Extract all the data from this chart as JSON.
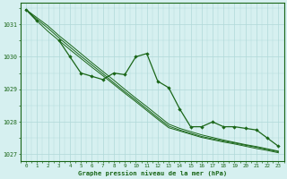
{
  "bg_color": "#d6f0f0",
  "grid_color": "#b0d8d8",
  "line_color": "#1a6618",
  "title": "Graphe pression niveau de la mer (hPa)",
  "hours": [
    0,
    1,
    2,
    3,
    4,
    5,
    6,
    7,
    8,
    9,
    10,
    11,
    12,
    13,
    14,
    15,
    16,
    17,
    18,
    19,
    20,
    21,
    22,
    23
  ],
  "ylim": [
    1026.8,
    1031.65
  ],
  "yticks": [
    1027,
    1028,
    1029,
    1030,
    1031
  ],
  "series_main": [
    1031.45,
    1031.1,
    null,
    1030.5,
    1030.0,
    1029.5,
    1029.4,
    1029.3,
    1029.5,
    1029.45,
    1030.0,
    1030.1,
    1029.25,
    1029.05,
    1028.4,
    1027.85,
    1027.85,
    1028.0,
    1027.85,
    1027.85,
    1027.8,
    1027.75,
    1027.5,
    1027.25
  ],
  "trend1": [
    1031.45,
    1031.1,
    1030.78,
    1030.5,
    1030.22,
    1029.95,
    1029.68,
    1029.42,
    1029.15,
    1028.88,
    1028.62,
    1028.35,
    1028.08,
    1027.82,
    1027.72,
    1027.62,
    1027.52,
    1027.45,
    1027.38,
    1027.32,
    1027.25,
    1027.18,
    1027.12,
    1027.05
  ],
  "trend2": [
    1031.45,
    1031.15,
    1030.88,
    1030.58,
    1030.3,
    1030.02,
    1029.75,
    1029.48,
    1029.2,
    1028.93,
    1028.67,
    1028.4,
    1028.13,
    1027.87,
    1027.75,
    1027.65,
    1027.55,
    1027.48,
    1027.41,
    1027.35,
    1027.28,
    1027.22,
    1027.15,
    1027.08
  ],
  "trend3": [
    1031.45,
    1031.2,
    1030.95,
    1030.65,
    1030.38,
    1030.1,
    1029.82,
    1029.55,
    1029.28,
    1029.0,
    1028.73,
    1028.47,
    1028.2,
    1027.93,
    1027.8,
    1027.7,
    1027.6,
    1027.52,
    1027.44,
    1027.37,
    1027.3,
    1027.24,
    1027.17,
    1027.1
  ]
}
